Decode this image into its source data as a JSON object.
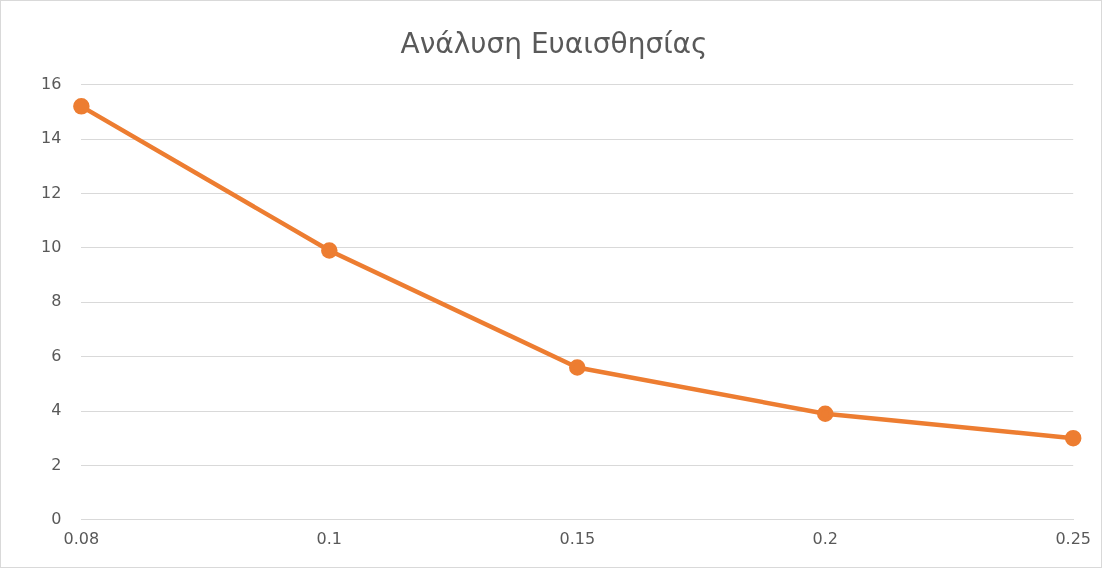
{
  "chart_data": {
    "type": "line",
    "title": "Ανάλυση Ευαισθησίας",
    "categories": [
      "0.08",
      "0.1",
      "0.15",
      "0.2",
      "0.25"
    ],
    "series": [
      {
        "color": "#ed7d31",
        "values": [
          15.2,
          9.9,
          5.6,
          3.9,
          3.0
        ]
      }
    ],
    "ylim": [
      0,
      16
    ],
    "yticks": [
      0,
      2,
      4,
      6,
      8,
      10,
      12,
      14,
      16
    ],
    "grid": "y",
    "legend": false,
    "marker": "circle",
    "line_style": "solid"
  }
}
